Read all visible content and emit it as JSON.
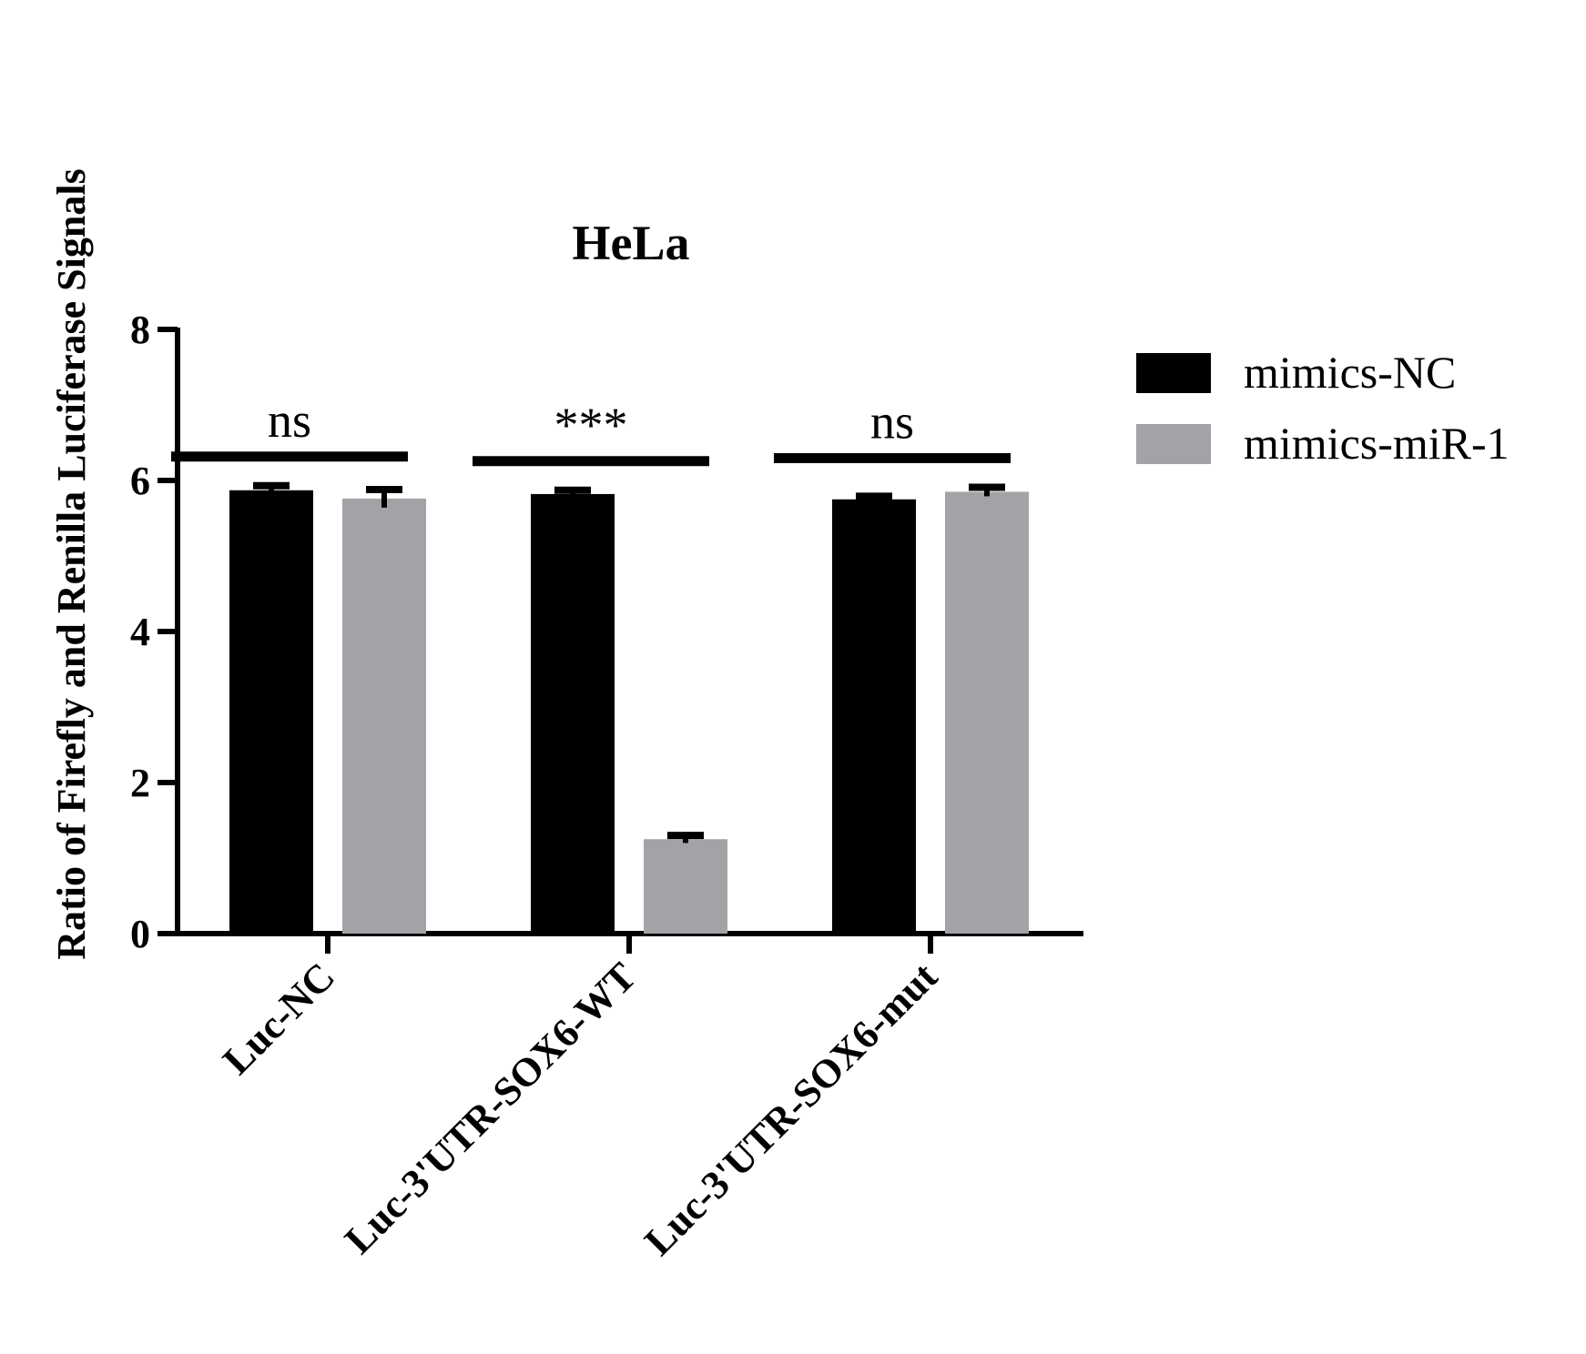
{
  "chart_data": {
    "type": "bar",
    "title": "HeLa",
    "xlabel": "",
    "ylabel": "Ratio of Firefly and Renilla Luciferase Signals",
    "ylim": [
      0,
      8
    ],
    "yticks": [
      "0",
      "2",
      "4",
      "6",
      "8"
    ],
    "categories": [
      "Luc-NC",
      "Luc-3'UTR-SOX6-WT",
      "Luc-3'UTR-SOX6-mut"
    ],
    "series": [
      {
        "name": "mimics-NC",
        "color": "#000000",
        "values": [
          5.87,
          5.82,
          5.75
        ],
        "errors": [
          0.06,
          0.05,
          0.04
        ]
      },
      {
        "name": "mimics-miR-1",
        "color": "#a3a3a7",
        "values": [
          5.76,
          1.25,
          5.85
        ],
        "errors": [
          0.12,
          0.05,
          0.06
        ]
      }
    ],
    "significance": [
      "ns",
      "***",
      "ns"
    ],
    "legend_position": "top-right",
    "grid": false
  }
}
